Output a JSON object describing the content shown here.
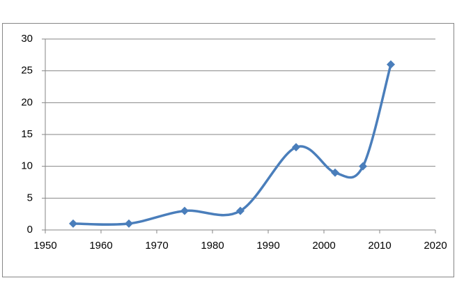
{
  "chart_data": {
    "type": "line",
    "smooth": true,
    "marker": "diamond",
    "x": [
      1955,
      1965,
      1975,
      1985,
      1995,
      2002,
      2007,
      2012
    ],
    "values": [
      1,
      1,
      3,
      3,
      13,
      9,
      10,
      26
    ],
    "color": "#4a7ebb",
    "xlim": [
      1950,
      2020
    ],
    "xticks": [
      1950,
      1960,
      1970,
      1980,
      1990,
      2000,
      2010,
      2020
    ],
    "ylim": [
      0,
      30
    ],
    "yticks": [
      0,
      5,
      10,
      15,
      20,
      25,
      30
    ],
    "grid": true
  }
}
